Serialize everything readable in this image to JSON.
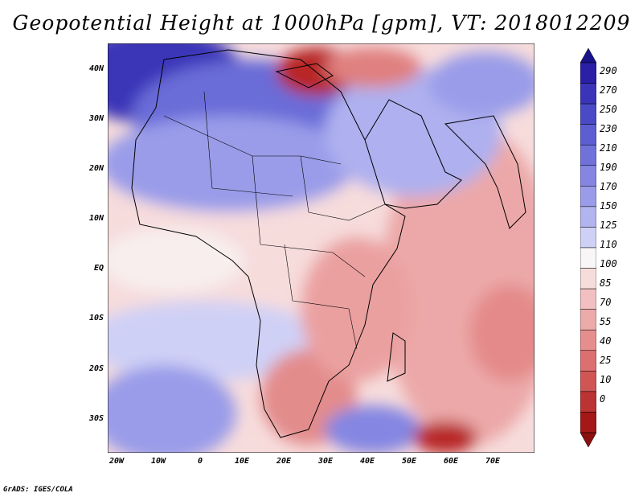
{
  "title": "Geopotential Height at 1000hPa [gpm], VT: 2018012209",
  "credit": "GrADS: IGES/COLA",
  "y_ticks": [
    "40N",
    "30N",
    "20N",
    "10N",
    "EQ",
    "10S",
    "20S",
    "30S"
  ],
  "x_ticks": [
    "20W",
    "10W",
    "0",
    "10E",
    "20E",
    "30E",
    "40E",
    "50E",
    "60E",
    "70E"
  ],
  "colorbar": {
    "labels": [
      "290",
      "270",
      "250",
      "230",
      "210",
      "190",
      "170",
      "150",
      "125",
      "110",
      "100",
      "85",
      "70",
      "55",
      "40",
      "25",
      "10",
      "0"
    ],
    "colors": [
      "#2a1fa6",
      "#3a35b8",
      "#4a4ac6",
      "#5d5ed2",
      "#7072da",
      "#8486e2",
      "#9a9ce9",
      "#b2b4f0",
      "#cfd0f6",
      "#f8f6f6",
      "#f7dcdc",
      "#f2c0c0",
      "#ecaaaa",
      "#e68e8e",
      "#dc7070",
      "#d05656",
      "#bb3333",
      "#a51818"
    ],
    "top_color": "#1a128a",
    "bottom_color": "#8c0e0e"
  }
}
